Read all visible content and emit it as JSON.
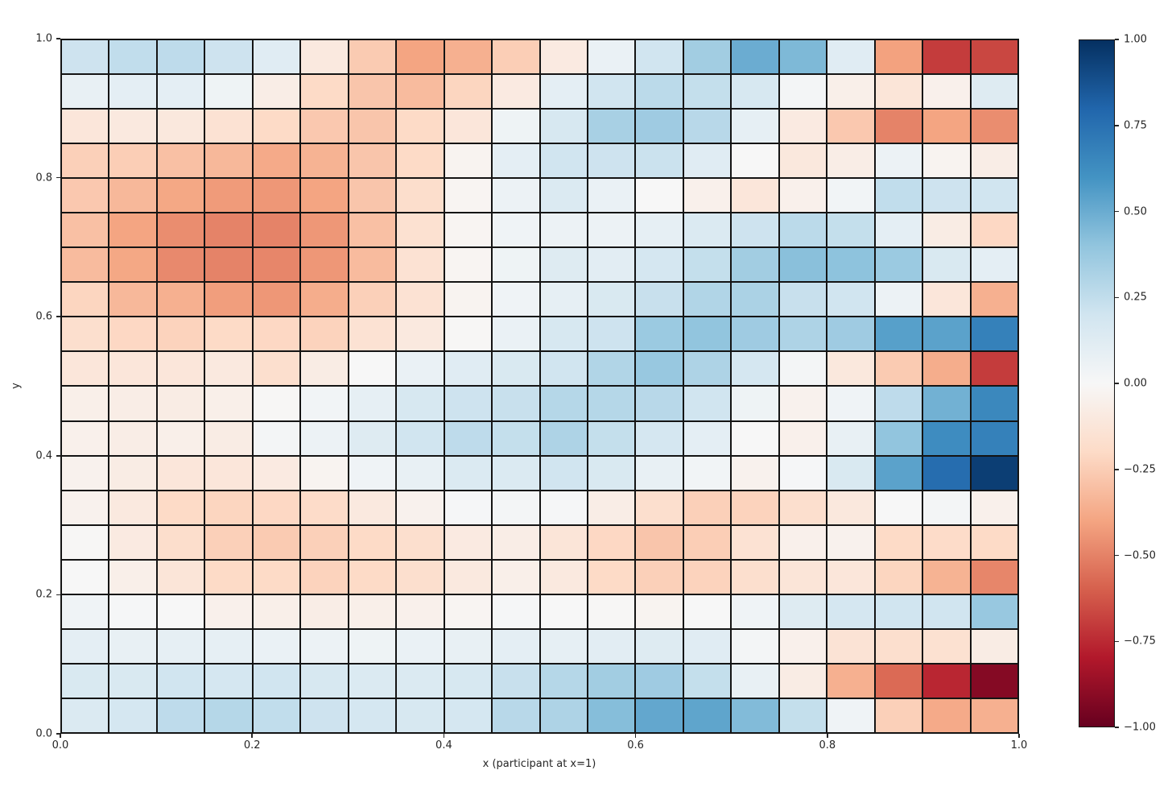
{
  "chart_data": {
    "type": "heatmap",
    "title": "",
    "xlabel": "x (participant at x=1)",
    "ylabel": "y",
    "x_range": [
      0.0,
      1.0
    ],
    "y_range": [
      0.0,
      1.0
    ],
    "grid_shape": [
      20,
      20
    ],
    "x_tick_labels": [
      "0.0",
      "0.2",
      "0.4",
      "0.6",
      "0.8",
      "1.0"
    ],
    "y_tick_labels_top_to_bottom": [
      "1.0",
      "0.8",
      "0.6",
      "0.4",
      "0.2",
      "0.0"
    ],
    "value_range": [
      -1.0,
      1.0
    ],
    "grid_on": true,
    "cell_edge_color": "#141414",
    "background": "#ffffff",
    "colormap_name": "RdBu",
    "colormap_anchors": [
      [
        0.0,
        "#67001f"
      ],
      [
        0.1,
        "#b2182b"
      ],
      [
        0.2,
        "#d6604d"
      ],
      [
        0.3,
        "#f4a582"
      ],
      [
        0.4,
        "#fddbc7"
      ],
      [
        0.5,
        "#f7f7f7"
      ],
      [
        0.6,
        "#d1e5f0"
      ],
      [
        0.7,
        "#92c5de"
      ],
      [
        0.8,
        "#4393c3"
      ],
      [
        0.9,
        "#2166ac"
      ],
      [
        1.0,
        "#053061"
      ]
    ],
    "colorbar_tick_labels_top_to_bottom": [
      "1.00",
      "0.75",
      "0.50",
      "0.25",
      "0.00",
      "−0.25",
      "−0.50",
      "−0.75",
      "−1.00"
    ],
    "values_rows_top_to_bottom": [
      [
        0.21,
        0.25,
        0.26,
        0.21,
        0.12,
        -0.1,
        -0.26,
        -0.4,
        -0.36,
        -0.25,
        -0.09,
        0.07,
        0.2,
        0.35,
        0.5,
        0.45,
        0.12,
        -0.41,
        -0.7,
        -0.67
      ],
      [
        0.08,
        0.1,
        0.1,
        0.05,
        -0.07,
        -0.2,
        -0.28,
        -0.32,
        -0.22,
        -0.09,
        0.1,
        0.2,
        0.27,
        0.24,
        0.17,
        0.02,
        -0.06,
        -0.13,
        -0.05,
        0.13
      ],
      [
        -0.12,
        -0.1,
        -0.11,
        -0.15,
        -0.2,
        -0.27,
        -0.28,
        -0.2,
        -0.12,
        0.05,
        0.17,
        0.33,
        0.36,
        0.28,
        0.09,
        -0.09,
        -0.27,
        -0.5,
        -0.4,
        -0.47
      ],
      [
        -0.24,
        -0.25,
        -0.3,
        -0.33,
        -0.38,
        -0.35,
        -0.28,
        -0.2,
        -0.03,
        0.1,
        0.2,
        0.21,
        0.22,
        0.12,
        0.0,
        -0.11,
        -0.07,
        0.06,
        -0.03,
        -0.07
      ],
      [
        -0.27,
        -0.33,
        -0.39,
        -0.43,
        -0.44,
        -0.4,
        -0.28,
        -0.18,
        -0.02,
        0.06,
        0.15,
        0.07,
        0.0,
        -0.05,
        -0.12,
        -0.05,
        0.03,
        0.25,
        0.21,
        0.2
      ],
      [
        -0.3,
        -0.4,
        -0.47,
        -0.5,
        -0.5,
        -0.44,
        -0.3,
        -0.16,
        -0.02,
        0.04,
        0.06,
        0.06,
        0.09,
        0.15,
        0.21,
        0.27,
        0.24,
        0.1,
        -0.08,
        -0.21
      ],
      [
        -0.32,
        -0.39,
        -0.48,
        -0.5,
        -0.49,
        -0.44,
        -0.32,
        -0.15,
        -0.02,
        0.05,
        0.13,
        0.11,
        0.18,
        0.24,
        0.35,
        0.42,
        0.41,
        0.37,
        0.16,
        0.1
      ],
      [
        -0.22,
        -0.33,
        -0.36,
        -0.42,
        -0.44,
        -0.37,
        -0.24,
        -0.15,
        -0.03,
        0.04,
        0.09,
        0.16,
        0.23,
        0.3,
        0.32,
        0.23,
        0.2,
        0.06,
        -0.12,
        -0.36
      ],
      [
        -0.17,
        -0.21,
        -0.23,
        -0.2,
        -0.21,
        -0.23,
        -0.15,
        -0.1,
        -0.01,
        0.07,
        0.17,
        0.21,
        0.37,
        0.4,
        0.36,
        0.31,
        0.36,
        0.55,
        0.54,
        0.68
      ],
      [
        -0.12,
        -0.12,
        -0.12,
        -0.1,
        -0.17,
        -0.08,
        0.0,
        0.07,
        0.12,
        0.16,
        0.2,
        0.3,
        0.38,
        0.31,
        0.18,
        0.02,
        -0.11,
        -0.26,
        -0.37,
        -0.7
      ],
      [
        -0.06,
        -0.07,
        -0.08,
        -0.06,
        -0.01,
        0.03,
        0.09,
        0.17,
        0.21,
        0.23,
        0.29,
        0.29,
        0.28,
        0.2,
        0.05,
        -0.04,
        0.04,
        0.26,
        0.48,
        0.65
      ],
      [
        -0.05,
        -0.07,
        -0.06,
        -0.08,
        0.02,
        0.06,
        0.13,
        0.2,
        0.26,
        0.24,
        0.31,
        0.24,
        0.18,
        0.1,
        0.0,
        -0.05,
        0.08,
        0.4,
        0.63,
        0.68
      ],
      [
        -0.04,
        -0.08,
        -0.12,
        -0.12,
        -0.09,
        -0.03,
        0.04,
        0.08,
        0.15,
        0.15,
        0.2,
        0.16,
        0.08,
        0.03,
        -0.04,
        0.01,
        0.16,
        0.54,
        0.77,
        0.95
      ],
      [
        -0.04,
        -0.1,
        -0.2,
        -0.22,
        -0.21,
        -0.19,
        -0.1,
        -0.04,
        0.01,
        0.02,
        0.01,
        -0.07,
        -0.17,
        -0.24,
        -0.23,
        -0.17,
        -0.11,
        0.0,
        0.02,
        -0.05
      ],
      [
        -0.01,
        -0.09,
        -0.18,
        -0.24,
        -0.26,
        -0.24,
        -0.2,
        -0.17,
        -0.09,
        -0.07,
        -0.13,
        -0.21,
        -0.28,
        -0.25,
        -0.15,
        -0.05,
        -0.04,
        -0.2,
        -0.19,
        -0.2
      ],
      [
        0.0,
        -0.06,
        -0.13,
        -0.2,
        -0.2,
        -0.23,
        -0.2,
        -0.17,
        -0.1,
        -0.06,
        -0.1,
        -0.2,
        -0.24,
        -0.23,
        -0.17,
        -0.13,
        -0.12,
        -0.22,
        -0.35,
        -0.49
      ],
      [
        0.04,
        0.01,
        0.0,
        -0.05,
        -0.06,
        -0.07,
        -0.06,
        -0.05,
        -0.02,
        0.01,
        0.0,
        -0.01,
        -0.03,
        0.0,
        0.04,
        0.13,
        0.18,
        0.2,
        0.2,
        0.38
      ],
      [
        0.1,
        0.08,
        0.09,
        0.09,
        0.07,
        0.06,
        0.05,
        0.07,
        0.08,
        0.1,
        0.09,
        0.11,
        0.13,
        0.12,
        0.02,
        -0.05,
        -0.14,
        -0.17,
        -0.16,
        -0.08
      ],
      [
        0.16,
        0.16,
        0.2,
        0.18,
        0.2,
        0.17,
        0.15,
        0.15,
        0.17,
        0.23,
        0.29,
        0.35,
        0.36,
        0.24,
        0.08,
        -0.08,
        -0.36,
        -0.57,
        -0.76,
        -0.92
      ],
      [
        0.15,
        0.18,
        0.26,
        0.29,
        0.25,
        0.21,
        0.18,
        0.17,
        0.18,
        0.28,
        0.31,
        0.43,
        0.52,
        0.53,
        0.44,
        0.24,
        0.04,
        -0.24,
        -0.38,
        -0.36
      ]
    ]
  }
}
